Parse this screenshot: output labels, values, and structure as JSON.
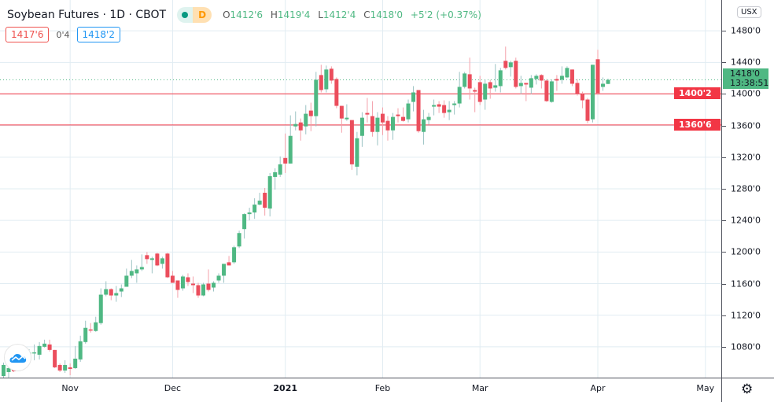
{
  "header": {
    "title": "Soybean Futures · 1D · CBOT",
    "status_badge": "D",
    "ohlc": {
      "o_label": "O",
      "o": "1412'6",
      "h_label": "H",
      "h": "1419'4",
      "l_label": "L",
      "l": "1412'4",
      "c_label": "C",
      "c": "1418'0",
      "change": "+5'2 (+0.37%)"
    }
  },
  "trade": {
    "sell": "1417'6",
    "spread": "0'4",
    "buy": "1418'2"
  },
  "axis": {
    "currency": "USX",
    "last_price": "1418'0",
    "countdown": "13:38:51",
    "settings_icon": "gear-icon"
  },
  "colors": {
    "up": "#4fb883",
    "down": "#eb4d5c",
    "up_wick": "#9cc3c4",
    "down_wick": "#f4a0aa",
    "level_line": "#f23645",
    "grid": "#e1ecf2",
    "last_line": "#4fb883"
  },
  "chart_data": {
    "type": "candlestick",
    "title": "Soybean Futures · 1D · CBOT",
    "ylim": [
      1041,
      1519
    ],
    "grid": true,
    "y_ticks": [
      {
        "value": 1480,
        "label": "1480'0"
      },
      {
        "value": 1440,
        "label": "1440'0"
      },
      {
        "value": 1400,
        "label": "1400'0"
      },
      {
        "value": 1360,
        "label": "1360'0"
      },
      {
        "value": 1320,
        "label": "1320'0"
      },
      {
        "value": 1280,
        "label": "1280'0"
      },
      {
        "value": 1240,
        "label": "1240'0"
      },
      {
        "value": 1200,
        "label": "1200'0"
      },
      {
        "value": 1160,
        "label": "1160'0"
      },
      {
        "value": 1120,
        "label": "1120'0"
      },
      {
        "value": 1080,
        "label": "1080'0"
      }
    ],
    "x_ticks": [
      {
        "date": "2020-11-02",
        "label": "Nov",
        "year": false
      },
      {
        "date": "2020-12-01",
        "label": "Dec",
        "year": false
      },
      {
        "date": "2021-01-04",
        "label": "2021",
        "year": true
      },
      {
        "date": "2021-02-01",
        "label": "Feb",
        "year": false
      },
      {
        "date": "2021-03-01",
        "label": "Mar",
        "year": false
      },
      {
        "date": "2021-04-01",
        "label": "Apr",
        "year": false
      },
      {
        "date": "2021-05-03",
        "label": "May",
        "year": false
      }
    ],
    "horizontal_lines": [
      {
        "value": 1400.25,
        "label": "1400'2"
      },
      {
        "value": 1360.75,
        "label": "1360'6"
      }
    ],
    "last_price": 1418,
    "columns": [
      "date",
      "open",
      "high",
      "low",
      "close"
    ],
    "candles": [
      [
        "2020-10-14",
        1043,
        1060,
        1041,
        1057
      ],
      [
        "2020-10-15",
        1048,
        1056,
        1041,
        1053
      ],
      [
        "2020-10-16",
        1051,
        1053,
        1048,
        1049
      ],
      [
        "2020-10-19",
        1057,
        1067,
        1054,
        1063
      ],
      [
        "2020-10-20",
        1064,
        1073,
        1061,
        1070
      ],
      [
        "2020-10-21",
        1071,
        1077,
        1066,
        1073
      ],
      [
        "2020-10-22",
        1072,
        1083,
        1063,
        1073
      ],
      [
        "2020-10-23",
        1070,
        1086,
        1064,
        1081
      ],
      [
        "2020-10-26",
        1080,
        1089,
        1079,
        1084
      ],
      [
        "2020-10-27",
        1083,
        1089,
        1074,
        1076
      ],
      [
        "2020-10-28",
        1076,
        1076,
        1053,
        1054
      ],
      [
        "2020-10-29",
        1057,
        1059,
        1048,
        1050
      ],
      [
        "2020-10-30",
        1050,
        1063,
        1047,
        1057
      ],
      [
        "2020-11-02",
        1054,
        1059,
        1044,
        1052
      ],
      [
        "2020-11-03",
        1053,
        1081,
        1052,
        1065
      ],
      [
        "2020-11-04",
        1064,
        1094,
        1061,
        1087
      ],
      [
        "2020-11-05",
        1086,
        1113,
        1084,
        1104
      ],
      [
        "2020-11-06",
        1102,
        1110,
        1098,
        1101
      ],
      [
        "2020-11-09",
        1100,
        1118,
        1099,
        1111
      ],
      [
        "2020-11-10",
        1110,
        1154,
        1108,
        1146
      ],
      [
        "2020-11-11",
        1146,
        1163,
        1144,
        1153
      ],
      [
        "2020-11-12",
        1153,
        1154,
        1139,
        1145
      ],
      [
        "2020-11-13",
        1145,
        1157,
        1137,
        1148
      ],
      [
        "2020-11-16",
        1150,
        1159,
        1143,
        1154
      ],
      [
        "2020-11-17",
        1156,
        1179,
        1156,
        1170
      ],
      [
        "2020-11-18",
        1170,
        1190,
        1167,
        1176
      ],
      [
        "2020-11-19",
        1173,
        1183,
        1161,
        1178
      ],
      [
        "2020-11-20",
        1178,
        1197,
        1176,
        1181
      ],
      [
        "2020-11-23",
        1196,
        1200,
        1185,
        1191
      ],
      [
        "2020-11-24",
        1190,
        1194,
        1173,
        1192
      ],
      [
        "2020-11-25",
        1198,
        1199,
        1182,
        1183
      ],
      [
        "2020-11-27",
        1185,
        1194,
        1179,
        1192
      ],
      [
        "2020-11-30",
        1198,
        1199,
        1167,
        1168
      ],
      [
        "2020-12-01",
        1170,
        1176,
        1161,
        1161
      ],
      [
        "2020-12-02",
        1164,
        1164,
        1142,
        1152
      ],
      [
        "2020-12-03",
        1154,
        1171,
        1151,
        1169
      ],
      [
        "2020-12-04",
        1168,
        1173,
        1157,
        1162
      ],
      [
        "2020-12-07",
        1160,
        1169,
        1148,
        1158
      ],
      [
        "2020-12-08",
        1158,
        1161,
        1142,
        1145
      ],
      [
        "2020-12-09",
        1145,
        1161,
        1144,
        1159
      ],
      [
        "2020-12-10",
        1160,
        1178,
        1150,
        1152
      ],
      [
        "2020-12-11",
        1155,
        1163,
        1150,
        1161
      ],
      [
        "2020-12-14",
        1164,
        1173,
        1161,
        1170
      ],
      [
        "2020-12-15",
        1170,
        1185,
        1161,
        1185
      ],
      [
        "2020-12-16",
        1187,
        1195,
        1183,
        1183
      ],
      [
        "2020-12-17",
        1187,
        1208,
        1185,
        1206
      ],
      [
        "2020-12-18",
        1207,
        1227,
        1205,
        1224
      ],
      [
        "2020-12-21",
        1229,
        1249,
        1217,
        1248
      ],
      [
        "2020-12-22",
        1248,
        1256,
        1240,
        1250
      ],
      [
        "2020-12-23",
        1250,
        1268,
        1242,
        1260
      ],
      [
        "2020-12-24",
        1260,
        1275,
        1259,
        1265
      ],
      [
        "2020-12-28",
        1275,
        1281,
        1246,
        1256
      ],
      [
        "2020-12-29",
        1255,
        1300,
        1245,
        1296
      ],
      [
        "2020-12-30",
        1295,
        1306,
        1279,
        1301
      ],
      [
        "2020-12-31",
        1298,
        1321,
        1295,
        1311
      ],
      [
        "2021-01-04",
        1319,
        1350,
        1300,
        1312
      ],
      [
        "2021-01-05",
        1312,
        1373,
        1312,
        1347
      ],
      [
        "2021-01-06",
        1359,
        1378,
        1354,
        1362
      ],
      [
        "2021-01-07",
        1364,
        1369,
        1341,
        1354
      ],
      [
        "2021-01-08",
        1359,
        1386,
        1349,
        1375
      ],
      [
        "2021-01-11",
        1379,
        1389,
        1353,
        1372
      ],
      [
        "2021-01-12",
        1372,
        1428,
        1359,
        1418
      ],
      [
        "2021-01-13",
        1424,
        1437,
        1402,
        1405
      ],
      [
        "2021-01-14",
        1406,
        1436,
        1402,
        1431
      ],
      [
        "2021-01-15",
        1432,
        1435,
        1413,
        1417
      ],
      [
        "2021-01-19",
        1419,
        1421,
        1382,
        1385
      ],
      [
        "2021-01-20",
        1385,
        1385,
        1351,
        1369
      ],
      [
        "2021-01-21",
        1368,
        1387,
        1366,
        1370
      ],
      [
        "2021-01-22",
        1367,
        1367,
        1304,
        1311
      ],
      [
        "2021-01-25",
        1308,
        1352,
        1297,
        1344
      ],
      [
        "2021-01-26",
        1347,
        1377,
        1333,
        1370
      ],
      [
        "2021-01-27",
        1376,
        1395,
        1364,
        1374
      ],
      [
        "2021-01-28",
        1372,
        1391,
        1346,
        1352
      ],
      [
        "2021-01-29",
        1352,
        1377,
        1335,
        1370
      ],
      [
        "2021-02-01",
        1375,
        1383,
        1348,
        1364
      ],
      [
        "2021-02-02",
        1366,
        1372,
        1341,
        1354
      ],
      [
        "2021-02-03",
        1354,
        1376,
        1342,
        1371
      ],
      [
        "2021-02-04",
        1374,
        1382,
        1364,
        1372
      ],
      [
        "2021-02-05",
        1371,
        1383,
        1365,
        1366
      ],
      [
        "2021-02-08",
        1368,
        1393,
        1364,
        1388
      ],
      [
        "2021-02-09",
        1390,
        1410,
        1378,
        1402
      ],
      [
        "2021-02-10",
        1405,
        1405,
        1351,
        1353
      ],
      [
        "2021-02-11",
        1352,
        1380,
        1336,
        1368
      ],
      [
        "2021-02-12",
        1367,
        1376,
        1361,
        1371
      ],
      [
        "2021-02-16",
        1384,
        1393,
        1373,
        1386
      ],
      [
        "2021-02-17",
        1387,
        1391,
        1376,
        1384
      ],
      [
        "2021-02-18",
        1386,
        1392,
        1370,
        1376
      ],
      [
        "2021-02-19",
        1377,
        1391,
        1367,
        1380
      ],
      [
        "2021-02-22",
        1386,
        1391,
        1374,
        1388
      ],
      [
        "2021-02-23",
        1388,
        1428,
        1383,
        1409
      ],
      [
        "2021-02-24",
        1409,
        1428,
        1407,
        1426
      ],
      [
        "2021-02-25",
        1425,
        1446,
        1393,
        1407
      ],
      [
        "2021-02-26",
        1405,
        1408,
        1377,
        1403
      ],
      [
        "2021-03-01",
        1415,
        1423,
        1386,
        1390
      ],
      [
        "2021-03-02",
        1393,
        1418,
        1380,
        1413
      ],
      [
        "2021-03-03",
        1415,
        1418,
        1394,
        1407
      ],
      [
        "2021-03-04",
        1408,
        1438,
        1403,
        1411
      ],
      [
        "2021-03-05",
        1410,
        1433,
        1402,
        1430
      ],
      [
        "2021-03-08",
        1442,
        1460,
        1431,
        1433
      ],
      [
        "2021-03-09",
        1434,
        1442,
        1422,
        1440
      ],
      [
        "2021-03-10",
        1442,
        1446,
        1407,
        1409
      ],
      [
        "2021-03-11",
        1410,
        1423,
        1400,
        1414
      ],
      [
        "2021-03-12",
        1414,
        1414,
        1391,
        1412
      ],
      [
        "2021-03-15",
        1408,
        1424,
        1400,
        1420
      ],
      [
        "2021-03-16",
        1419,
        1425,
        1412,
        1423
      ],
      [
        "2021-03-17",
        1424,
        1425,
        1407,
        1417
      ],
      [
        "2021-03-18",
        1417,
        1419,
        1390,
        1391
      ],
      [
        "2021-03-19",
        1390,
        1418,
        1389,
        1416
      ],
      [
        "2021-03-22",
        1419,
        1424,
        1404,
        1417
      ],
      [
        "2021-03-23",
        1418,
        1435,
        1413,
        1423
      ],
      [
        "2021-03-24",
        1421,
        1435,
        1420,
        1433
      ],
      [
        "2021-03-25",
        1431,
        1431,
        1410,
        1413
      ],
      [
        "2021-03-26",
        1414,
        1419,
        1398,
        1400
      ],
      [
        "2021-03-29",
        1400,
        1403,
        1382,
        1392
      ],
      [
        "2021-03-30",
        1393,
        1395,
        1363,
        1366
      ],
      [
        "2021-03-31",
        1368,
        1437,
        1364,
        1437
      ],
      [
        "2021-04-01",
        1444,
        1456,
        1399,
        1401
      ],
      [
        "2021-04-05",
        1409,
        1421,
        1404,
        1413
      ],
      [
        "2021-04-06",
        1412.75,
        1419.5,
        1412.5,
        1418
      ]
    ]
  }
}
